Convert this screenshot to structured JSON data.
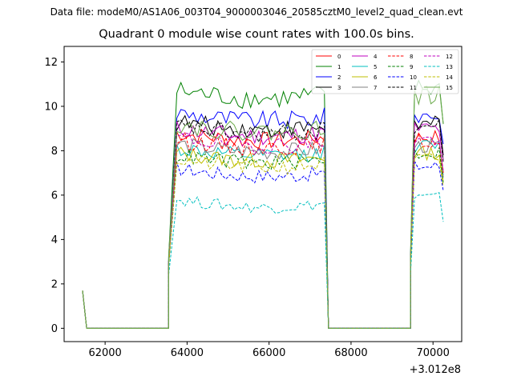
{
  "header": {
    "data_file": "Data file: modeM0/AS1A06_003T04_9000003046_20585cztM0_level2_quad_clean.evt"
  },
  "chart_data": {
    "type": "line",
    "title": "Quadrant 0 module wise count rates with 100.0s bins.",
    "xlabel": "",
    "ylabel": "",
    "x_offset_label": "+3.012e8",
    "xlim": [
      61000,
      70700
    ],
    "ylim": [
      -0.6,
      12.7
    ],
    "x_ticks": [
      62000,
      64000,
      66000,
      68000,
      70000
    ],
    "x_tick_labels": [
      "62000",
      "64000",
      "66000",
      "68000",
      "70000"
    ],
    "y_ticks": [
      0,
      2,
      4,
      6,
      8,
      10,
      12
    ],
    "y_tick_labels": [
      "0",
      "2",
      "4",
      "6",
      "8",
      "10",
      "12"
    ],
    "grid": false,
    "legend_position": "top-right",
    "legend_columns": 4,
    "x": {
      "lead": [
        61450,
        61550
      ],
      "zero1_start": 61550,
      "zero1_end": 63550,
      "on1_start": 63550,
      "on1_first": 63750,
      "on1_end": 67350,
      "zero2_start": 67450,
      "zero2_end": 69450,
      "on2_start": 69450,
      "on2_first": 69550,
      "on2_end": 70250,
      "step": 100
    },
    "series": [
      {
        "name": "0",
        "color": "#ff0000",
        "dash": "solid",
        "start": 1.7,
        "rise1": 3.0,
        "rise2": 3.0,
        "base1": 8.8,
        "base2": 8.6,
        "end2": 7.0
      },
      {
        "name": "1",
        "color": "#008000",
        "dash": "solid",
        "start": 1.7,
        "rise1": 3.2,
        "rise2": 3.2,
        "base1": 10.7,
        "base2": 10.8,
        "end2": 9.2
      },
      {
        "name": "2",
        "color": "#0000ff",
        "dash": "solid",
        "start": 1.7,
        "rise1": 3.1,
        "rise2": 3.1,
        "base1": 9.7,
        "base2": 9.6,
        "end2": 8.3
      },
      {
        "name": "3",
        "color": "#000000",
        "dash": "solid",
        "start": 1.7,
        "rise1": 3.0,
        "rise2": 3.0,
        "base1": 9.3,
        "base2": 9.2,
        "end2": 7.8
      },
      {
        "name": "4",
        "color": "#bf00bf",
        "dash": "solid",
        "start": 1.7,
        "rise1": 3.0,
        "rise2": 3.0,
        "base1": 9.0,
        "base2": 9.0,
        "end2": 7.6
      },
      {
        "name": "5",
        "color": "#00bfbf",
        "dash": "solid",
        "start": 1.7,
        "rise1": 2.9,
        "rise2": 2.9,
        "base1": 8.1,
        "base2": 8.2,
        "end2": 6.9
      },
      {
        "name": "6",
        "color": "#bfbf00",
        "dash": "solid",
        "start": 1.7,
        "rise1": 2.9,
        "rise2": 2.9,
        "base1": 7.9,
        "base2": 7.9,
        "end2": 6.6
      },
      {
        "name": "7",
        "color": "#808080",
        "dash": "solid",
        "start": 1.7,
        "rise1": 2.9,
        "rise2": 2.9,
        "base1": 8.3,
        "base2": 8.2,
        "end2": 6.8
      },
      {
        "name": "8",
        "color": "#ff0000",
        "dash": "dashed",
        "start": 1.7,
        "rise1": 2.9,
        "rise2": 2.9,
        "base1": 8.5,
        "base2": 8.4,
        "end2": 7.0
      },
      {
        "name": "9",
        "color": "#008000",
        "dash": "dashed",
        "start": 1.7,
        "rise1": 2.8,
        "rise2": 2.8,
        "base1": 7.8,
        "base2": 7.9,
        "end2": 6.5
      },
      {
        "name": "10",
        "color": "#0000ff",
        "dash": "dashed",
        "start": 1.7,
        "rise1": 2.8,
        "rise2": 2.8,
        "base1": 7.2,
        "base2": 7.3,
        "end2": 6.2
      },
      {
        "name": "11",
        "color": "#000000",
        "dash": "dashed",
        "start": 1.7,
        "rise1": 3.0,
        "rise2": 3.0,
        "base1": 9.1,
        "base2": 9.1,
        "end2": 7.5
      },
      {
        "name": "12",
        "color": "#bf00bf",
        "dash": "dashed",
        "start": 1.7,
        "rise1": 2.9,
        "rise2": 2.9,
        "base1": 8.6,
        "base2": 8.5,
        "end2": 7.1
      },
      {
        "name": "13",
        "color": "#00bfbf",
        "dash": "dashed",
        "start": 1.7,
        "rise1": 2.4,
        "rise2": 2.4,
        "base1": 5.8,
        "base2": 5.9,
        "end2": 4.8
      },
      {
        "name": "14",
        "color": "#bfbf00",
        "dash": "dashed",
        "start": 1.7,
        "rise1": 2.8,
        "rise2": 2.8,
        "base1": 7.6,
        "base2": 7.6,
        "end2": 6.4
      },
      {
        "name": "15",
        "color": "#6aaa4a",
        "dash": "solid",
        "start": 1.7,
        "rise1": 3.3,
        "rise2": 3.3,
        "base1": 9.2,
        "base2": 10.5,
        "end2": 9.2
      }
    ]
  }
}
